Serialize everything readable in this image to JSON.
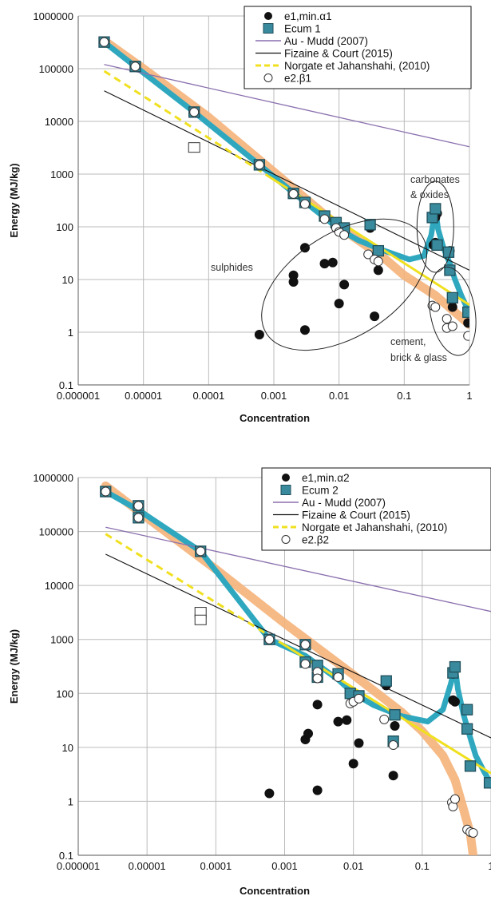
{
  "chart_data": [
    {
      "type": "scatter",
      "xlabel": "Concentration",
      "ylabel": "Energy (MJ/kg)",
      "xscale": "log",
      "yscale": "log",
      "xlim": [
        1e-06,
        1
      ],
      "ylim": [
        0.1,
        1000000
      ],
      "grid": true,
      "legend_position": "top-right",
      "x_ticks": [
        "0.000001",
        "0.00001",
        "0.0001",
        "0.001",
        "0.01",
        "0.1",
        "1"
      ],
      "y_ticks": [
        "0.1",
        "1",
        "10",
        "100",
        "1000",
        "10000",
        "100000",
        "1000000"
      ],
      "legend": [
        "e1,min.α1",
        "Ecum 1",
        "Au - Mudd (2007)",
        "Fizaine & Court (2015)",
        "Norgate et Jahanshahi, (2010)",
        "e2.β1"
      ],
      "annotations": [
        "carbonates",
        "& oxides",
        "sulphides",
        "cement,",
        "brick & glass"
      ],
      "series": [
        {
          "name": "e1,min.α1",
          "marker": "black-circle",
          "points": [
            [
              0.0006,
              0.9
            ],
            [
              0.002,
              9
            ],
            [
              0.002,
              12
            ],
            [
              0.003,
              40
            ],
            [
              0.003,
              1.1
            ],
            [
              0.006,
              20
            ],
            [
              0.008,
              21
            ],
            [
              0.01,
              3.5
            ],
            [
              0.012,
              8
            ],
            [
              0.03,
              95
            ],
            [
              0.04,
              15
            ],
            [
              0.035,
              2
            ],
            [
              0.28,
              45
            ],
            [
              0.3,
              50
            ],
            [
              0.5,
              35
            ],
            [
              0.55,
              3
            ],
            [
              0.95,
              1.5
            ],
            [
              0.3,
              150
            ],
            [
              0.32,
              180
            ]
          ]
        },
        {
          "name": "Ecum 1",
          "marker": "teal-square",
          "points": [
            [
              2.5e-06,
              320000
            ],
            [
              7.5e-06,
              110000
            ],
            [
              6e-05,
              15000
            ],
            [
              0.0006,
              1500
            ],
            [
              0.002,
              430
            ],
            [
              0.003,
              290
            ],
            [
              0.006,
              160
            ],
            [
              0.009,
              120
            ],
            [
              0.012,
              95
            ],
            [
              0.03,
              110
            ],
            [
              0.04,
              35
            ],
            [
              0.27,
              150
            ],
            [
              0.3,
              220
            ],
            [
              0.32,
              45
            ],
            [
              0.48,
              33
            ],
            [
              0.5,
              15
            ],
            [
              0.55,
              4.5
            ],
            [
              0.95,
              2.4
            ]
          ]
        },
        {
          "name": "e2.β1",
          "marker": "white-circle",
          "points": [
            [
              2.5e-06,
              320000
            ],
            [
              7.5e-06,
              110000
            ],
            [
              6e-05,
              15000
            ],
            [
              0.0006,
              1500
            ],
            [
              0.002,
              420
            ],
            [
              0.003,
              270
            ],
            [
              0.006,
              140
            ],
            [
              0.009,
              95
            ],
            [
              0.01,
              80
            ],
            [
              0.012,
              70
            ],
            [
              0.028,
              30
            ],
            [
              0.035,
              24
            ],
            [
              0.04,
              22
            ],
            [
              0.27,
              3.2
            ],
            [
              0.3,
              3
            ],
            [
              0.45,
              1.8
            ],
            [
              0.45,
              1.2
            ],
            [
              0.55,
              1.3
            ],
            [
              0.95,
              0.85
            ]
          ]
        },
        {
          "name": "Ecum 1 (fit)",
          "style": "teal-curve",
          "points": [
            [
              2.5e-06,
              320000
            ],
            [
              7.5e-06,
              110000
            ],
            [
              6e-05,
              15000
            ],
            [
              0.0006,
              1500
            ],
            [
              0.002,
              440
            ],
            [
              0.006,
              150
            ],
            [
              0.01,
              90
            ],
            [
              0.02,
              55
            ],
            [
              0.05,
              35
            ],
            [
              0.12,
              24
            ],
            [
              0.2,
              28
            ],
            [
              0.26,
              70
            ],
            [
              0.3,
              230
            ],
            [
              0.33,
              90
            ],
            [
              0.4,
              40
            ],
            [
              0.5,
              20
            ],
            [
              0.6,
              10
            ],
            [
              0.75,
              5
            ],
            [
              1,
              2.3
            ]
          ]
        },
        {
          "name": "Orange band",
          "style": "orange-band",
          "points": [
            [
              2.5e-06,
              340000
            ],
            [
              1e-05,
              100000
            ],
            [
              0.0001,
              12000
            ],
            [
              0.001,
              1100
            ],
            [
              0.01,
              100
            ],
            [
              0.05,
              25
            ],
            [
              0.1,
              12
            ],
            [
              0.3,
              5
            ],
            [
              0.6,
              2.4
            ],
            [
              1,
              1.4
            ]
          ]
        },
        {
          "name": "Au - Mudd (2007)",
          "style": "purple-line",
          "points": [
            [
              2.5e-06,
              120000
            ],
            [
              1,
              3300
            ]
          ]
        },
        {
          "name": "Fizaine & Court (2015)",
          "style": "black-line",
          "points": [
            [
              2.5e-06,
              38000
            ],
            [
              1,
              15
            ]
          ]
        },
        {
          "name": "Norgate et Jahanshahi, (2010)",
          "style": "yellow-line",
          "points": [
            [
              2.5e-06,
              90000
            ],
            [
              1,
              3.3
            ]
          ]
        },
        {
          "name": "open-square",
          "marker": "open-square",
          "points": [
            [
              6e-05,
              3200
            ]
          ]
        }
      ]
    },
    {
      "type": "scatter",
      "xlabel": "Concentration",
      "ylabel": "Energy (MJ/kg)",
      "xscale": "log",
      "yscale": "log",
      "xlim": [
        1e-06,
        1
      ],
      "ylim": [
        0.1,
        1000000
      ],
      "grid": true,
      "legend_position": "top-right",
      "x_ticks": [
        "0.000001",
        "0.00001",
        "0.0001",
        "0.001",
        "0.01",
        "0.1",
        "1"
      ],
      "y_ticks": [
        "0.1",
        "1",
        "10",
        "100",
        "1000",
        "10000",
        "100000",
        "1000000"
      ],
      "legend": [
        "e1,min.α2",
        "Ecum 2",
        "Au - Mudd (2007)",
        "Fizaine & Court (2015)",
        "Norgate et Jahanshahi, (2010)",
        "e2.β2"
      ],
      "annotations": [],
      "series": [
        {
          "name": "e1,min.α2",
          "marker": "black-circle",
          "points": [
            [
              0.0006,
              1.4
            ],
            [
              0.002,
              14
            ],
            [
              0.0022,
              18
            ],
            [
              0.003,
              62
            ],
            [
              0.003,
              1.6
            ],
            [
              0.006,
              30
            ],
            [
              0.008,
              32
            ],
            [
              0.01,
              5
            ],
            [
              0.012,
              12
            ],
            [
              0.03,
              140
            ],
            [
              0.04,
              25
            ],
            [
              0.038,
              3
            ],
            [
              0.28,
              75
            ],
            [
              0.3,
              70
            ],
            [
              0.45,
              50
            ],
            [
              0.45,
              22
            ],
            [
              0.28,
              230
            ],
            [
              0.3,
              300
            ]
          ]
        },
        {
          "name": "Ecum 2",
          "marker": "teal-square",
          "points": [
            [
              2.5e-06,
              550000
            ],
            [
              7.5e-06,
              300000
            ],
            [
              7.5e-06,
              180000
            ],
            [
              6e-05,
              43000
            ],
            [
              0.0006,
              1000
            ],
            [
              0.002,
              800
            ],
            [
              0.002,
              380
            ],
            [
              0.003,
              330
            ],
            [
              0.003,
              200
            ],
            [
              0.006,
              230
            ],
            [
              0.009,
              100
            ],
            [
              0.012,
              90
            ],
            [
              0.03,
              170
            ],
            [
              0.04,
              40
            ],
            [
              0.038,
              13
            ],
            [
              0.28,
              240
            ],
            [
              0.3,
              310
            ],
            [
              0.45,
              50
            ],
            [
              0.45,
              22
            ],
            [
              0.5,
              4.5
            ],
            [
              0.95,
              2.2
            ]
          ]
        },
        {
          "name": "e2.β2",
          "marker": "white-circle",
          "points": [
            [
              2.5e-06,
              550000
            ],
            [
              7.5e-06,
              300000
            ],
            [
              7.5e-06,
              180000
            ],
            [
              6e-05,
              43000
            ],
            [
              0.0006,
              1000
            ],
            [
              0.002,
              800
            ],
            [
              0.002,
              350
            ],
            [
              0.003,
              250
            ],
            [
              0.003,
              190
            ],
            [
              0.006,
              200
            ],
            [
              0.009,
              65
            ],
            [
              0.01,
              70
            ],
            [
              0.012,
              80
            ],
            [
              0.028,
              33
            ],
            [
              0.038,
              11
            ],
            [
              0.27,
              0.95
            ],
            [
              0.28,
              0.8
            ],
            [
              0.3,
              1.1
            ],
            [
              0.45,
              0.3
            ],
            [
              0.5,
              0.27
            ],
            [
              0.55,
              0.26
            ]
          ]
        },
        {
          "name": "Ecum 2 (fit)",
          "style": "teal-curve",
          "points": [
            [
              2.5e-06,
              550000
            ],
            [
              7.5e-06,
              250000
            ],
            [
              6e-05,
              43000
            ],
            [
              0.0006,
              1000
            ],
            [
              0.002,
              500
            ],
            [
              0.006,
              180
            ],
            [
              0.01,
              100
            ],
            [
              0.02,
              60
            ],
            [
              0.05,
              38
            ],
            [
              0.12,
              30
            ],
            [
              0.2,
              50
            ],
            [
              0.26,
              150
            ],
            [
              0.3,
              320
            ],
            [
              0.33,
              120
            ],
            [
              0.4,
              40
            ],
            [
              0.5,
              15
            ],
            [
              0.6,
              7
            ],
            [
              0.8,
              3.5
            ],
            [
              1,
              2.1
            ]
          ]
        },
        {
          "name": "Orange band",
          "style": "orange-band",
          "points": [
            [
              2.5e-06,
              700000
            ],
            [
              1e-05,
              180000
            ],
            [
              0.0001,
              20000
            ],
            [
              0.001,
              2000
            ],
            [
              0.01,
              220
            ],
            [
              0.05,
              45
            ],
            [
              0.1,
              20
            ],
            [
              0.2,
              7
            ],
            [
              0.3,
              2.5
            ],
            [
              0.4,
              0.7
            ],
            [
              0.5,
              0.25
            ],
            [
              0.55,
              0.1
            ]
          ]
        },
        {
          "name": "Au - Mudd (2007)",
          "style": "purple-line",
          "points": [
            [
              2.5e-06,
              120000
            ],
            [
              1,
              3300
            ]
          ]
        },
        {
          "name": "Fizaine & Court (2015)",
          "style": "black-line",
          "points": [
            [
              2.5e-06,
              38000
            ],
            [
              1,
              15
            ]
          ]
        },
        {
          "name": "Norgate et Jahanshahi, (2010)",
          "style": "yellow-line",
          "points": [
            [
              2.5e-06,
              90000
            ],
            [
              1,
              3.3
            ]
          ]
        },
        {
          "name": "open-square",
          "marker": "open-square",
          "points": [
            [
              6e-05,
              3200
            ],
            [
              6e-05,
              2300
            ]
          ]
        }
      ]
    }
  ],
  "colors": {
    "teal": "#2fa8bf",
    "teal_marker": "#3a8a9e",
    "orange": "#f5b27a",
    "purple": "#8a6fae",
    "yellow": "#f0e020",
    "black": "#111111",
    "grid": "#bbbbbb"
  }
}
